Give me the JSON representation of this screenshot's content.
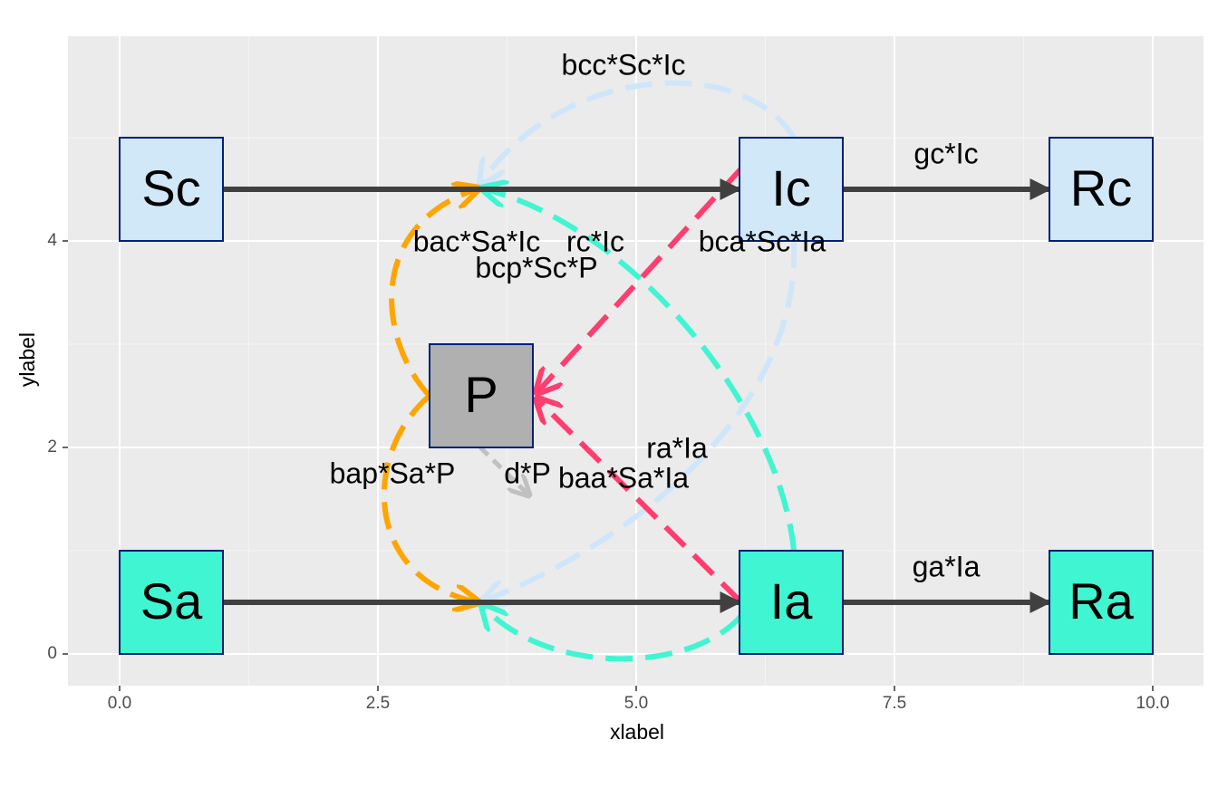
{
  "axes": {
    "x_title": "xlabel",
    "y_title": "ylabel",
    "x_ticks": [
      {
        "value": 0,
        "label": "0.0"
      },
      {
        "value": 2.5,
        "label": "2.5"
      },
      {
        "value": 5,
        "label": "5.0"
      },
      {
        "value": 7.5,
        "label": "7.5"
      },
      {
        "value": 10,
        "label": "10.0"
      }
    ],
    "y_ticks": [
      0,
      2,
      4
    ]
  },
  "nodes": [
    {
      "label": "Sc"
    },
    {
      "label": "Ic"
    },
    {
      "label": "Rc"
    },
    {
      "label": "P"
    },
    {
      "label": "Sa"
    },
    {
      "label": "Ia"
    },
    {
      "label": "Ra"
    }
  ],
  "flows": [
    {
      "label": "bcc*Sc*Ic"
    },
    {
      "label": "gc*Ic"
    },
    {
      "label": "bac*Sa*Ic"
    },
    {
      "label": "rc*Ic"
    },
    {
      "label": "bca*Sc*Ia"
    },
    {
      "label": "bcp*Sc*P"
    },
    {
      "label": "ra*Ia"
    },
    {
      "label": "bap*Sa*P"
    },
    {
      "label": "d*P"
    },
    {
      "label": "baa*Sa*Ia"
    },
    {
      "label": "ga*Ia"
    }
  ]
}
